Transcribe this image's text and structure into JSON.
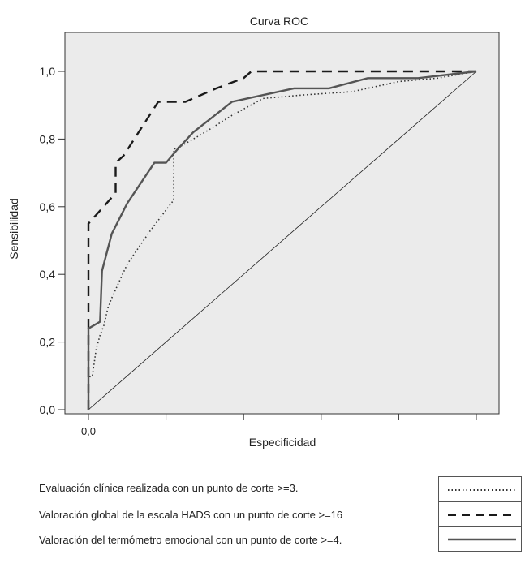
{
  "chart_data": {
    "type": "line",
    "title": "Curva  ROC",
    "xlabel": "Especificidad",
    "ylabel": "Sensibilidad",
    "xlim": [
      0,
      1
    ],
    "ylim": [
      0,
      1.1
    ],
    "x_tick_labels": [
      "0,0"
    ],
    "y_ticks": [
      0,
      0.2,
      0.4,
      0.6,
      0.8,
      1.0
    ],
    "y_tick_labels": [
      "0,0",
      "0,2",
      "0,4",
      "0,6",
      "0,8",
      "1,0"
    ],
    "grid": false,
    "reference_line": {
      "x": [
        0,
        1
      ],
      "y": [
        0,
        1
      ]
    },
    "series": [
      {
        "name": "Evaluación clínica realizada con un punto de corte >=3.",
        "style": "dotted",
        "color": "#333333",
        "x": [
          0,
          0,
          0.005,
          0.01,
          0.02,
          0.03,
          0.04,
          0.05,
          0.06,
          0.08,
          0.1,
          0.13,
          0.16,
          0.2,
          0.22,
          0.22,
          0.24,
          0.3,
          0.37,
          0.45,
          0.55,
          0.68,
          0.8,
          0.9,
          1.0
        ],
        "y": [
          0,
          0.09,
          0.1,
          0.1,
          0.18,
          0.22,
          0.25,
          0.3,
          0.33,
          0.38,
          0.43,
          0.48,
          0.53,
          0.59,
          0.62,
          0.77,
          0.78,
          0.82,
          0.87,
          0.92,
          0.93,
          0.94,
          0.97,
          0.98,
          1.0
        ]
      },
      {
        "name": "Valoración global de la escala HADS con un punto de corte >=16",
        "style": "dashed",
        "color": "#1a1a1a",
        "x": [
          0,
          0,
          0.07,
          0.07,
          0.09,
          0.18,
          0.18,
          0.25,
          0.33,
          0.4,
          0.42,
          0.6,
          0.8,
          1.0
        ],
        "y": [
          0,
          0.55,
          0.64,
          0.73,
          0.75,
          0.91,
          0.91,
          0.91,
          0.95,
          0.98,
          1.0,
          1.0,
          1.0,
          1.0
        ],
        "y_corrected": true
      },
      {
        "name": "Valoración del termómetro emocional con un punto de corte >=4.",
        "style": "solid",
        "color": "#555555",
        "x": [
          0,
          0,
          0.03,
          0.035,
          0.06,
          0.1,
          0.17,
          0.2,
          0.23,
          0.27,
          0.37,
          0.45,
          0.53,
          0.62,
          0.72,
          0.85,
          1.0
        ],
        "y": [
          0,
          0.24,
          0.26,
          0.41,
          0.52,
          0.61,
          0.73,
          0.73,
          0.77,
          0.82,
          0.91,
          0.93,
          0.95,
          0.95,
          0.98,
          0.98,
          1.0
        ]
      }
    ]
  }
}
